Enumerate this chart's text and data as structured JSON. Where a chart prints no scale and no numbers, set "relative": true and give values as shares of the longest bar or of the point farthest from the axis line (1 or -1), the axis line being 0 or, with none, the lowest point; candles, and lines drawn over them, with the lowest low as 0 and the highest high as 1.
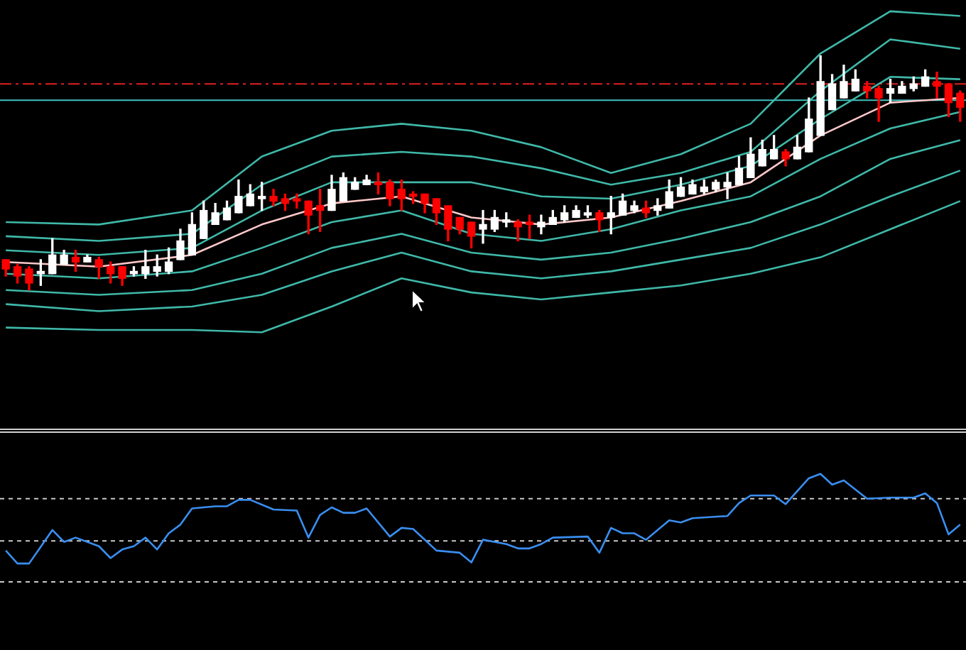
{
  "chart_data": [
    {
      "type": "candlestick",
      "relative": true,
      "marker": "none",
      "categories": [
        null,
        null,
        null,
        null,
        null,
        null,
        null,
        null,
        null,
        null,
        null,
        null,
        null,
        null,
        null,
        null,
        null,
        null,
        null,
        null,
        null,
        null,
        null,
        null,
        null,
        null,
        null,
        null,
        null,
        null,
        null,
        null,
        null,
        null,
        null,
        null,
        null,
        null,
        null,
        null,
        null,
        null,
        null,
        null,
        null,
        null,
        null,
        null,
        null,
        null,
        null,
        null,
        null,
        null,
        null,
        null,
        null,
        null,
        null,
        null,
        null,
        null,
        null,
        null,
        null,
        null,
        null,
        null,
        null,
        null,
        null,
        null,
        null,
        null,
        null,
        null,
        null,
        null,
        null,
        null,
        null,
        null,
        null
      ],
      "ohlc": [
        [
          0.13,
          0.13,
          0.06,
          0.09
        ],
        [
          0.1,
          0.11,
          0.03,
          0.06
        ],
        [
          0.09,
          0.1,
          0,
          0.03
        ],
        [
          0.07,
          0.13,
          0.02,
          0.08
        ],
        [
          0.07,
          0.22,
          0.07,
          0.15
        ],
        [
          0.11,
          0.17,
          0.11,
          0.15
        ],
        [
          0.14,
          0.17,
          0.08,
          0.12
        ],
        [
          0.12,
          0.15,
          0.12,
          0.14
        ],
        [
          0.13,
          0.14,
          0.05,
          0.1
        ],
        [
          0.1,
          0.12,
          0.03,
          0.07
        ],
        [
          0.1,
          0.1,
          0.02,
          0.05
        ],
        [
          0.07,
          0.1,
          0.06,
          0.08
        ],
        [
          0.07,
          0.17,
          0.05,
          0.1
        ],
        [
          0.08,
          0.15,
          0.06,
          0.1
        ],
        [
          0.08,
          0.18,
          0.07,
          0.12
        ],
        [
          0.13,
          0.26,
          0.13,
          0.21
        ],
        [
          0.15,
          0.33,
          0.15,
          0.28
        ],
        [
          0.22,
          0.38,
          0.22,
          0.34
        ],
        [
          0.28,
          0.37,
          0.28,
          0.33
        ],
        [
          0.3,
          0.38,
          0.3,
          0.35
        ],
        [
          0.33,
          0.47,
          0.33,
          0.4
        ],
        [
          0.36,
          0.45,
          0.36,
          0.41
        ],
        [
          0.39,
          0.46,
          0.34,
          0.4
        ],
        [
          0.4,
          0.43,
          0.36,
          0.38
        ],
        [
          0.39,
          0.41,
          0.34,
          0.37
        ],
        [
          0.39,
          0.41,
          0.35,
          0.38
        ],
        [
          0.38,
          0.38,
          0.24,
          0.32
        ],
        [
          0.36,
          0.43,
          0.25,
          0.34
        ],
        [
          0.34,
          0.49,
          0.34,
          0.43
        ],
        [
          0.38,
          0.5,
          0.38,
          0.48
        ],
        [
          0.43,
          0.48,
          0.43,
          0.46
        ],
        [
          0.45,
          0.49,
          0.45,
          0.47
        ],
        [
          0.46,
          0.5,
          0.41,
          0.45
        ],
        [
          0.46,
          0.47,
          0.36,
          0.39
        ],
        [
          0.43,
          0.47,
          0.34,
          0.39
        ],
        [
          0.41,
          0.42,
          0.37,
          0.4
        ],
        [
          0.41,
          0.41,
          0.33,
          0.37
        ],
        [
          0.39,
          0.39,
          0.28,
          0.33
        ],
        [
          0.36,
          0.36,
          0.21,
          0.26
        ],
        [
          0.31,
          0.31,
          0.24,
          0.26
        ],
        [
          0.29,
          0.29,
          0.18,
          0.23
        ],
        [
          0.26,
          0.34,
          0.2,
          0.28
        ],
        [
          0.26,
          0.34,
          0.25,
          0.31
        ],
        [
          0.29,
          0.33,
          0.27,
          0.3
        ],
        [
          0.29,
          0.3,
          0.21,
          0.27
        ],
        [
          0.29,
          0.32,
          0.22,
          0.28
        ],
        [
          0.27,
          0.32,
          0.24,
          0.29
        ],
        [
          0.28,
          0.34,
          0.28,
          0.31
        ],
        [
          0.3,
          0.36,
          0.29,
          0.33
        ],
        [
          0.31,
          0.36,
          0.31,
          0.34
        ],
        [
          0.32,
          0.36,
          0.31,
          0.33
        ],
        [
          0.33,
          0.34,
          0.25,
          0.3
        ],
        [
          0.31,
          0.4,
          0.24,
          0.33
        ],
        [
          0.32,
          0.41,
          0.32,
          0.38
        ],
        [
          0.34,
          0.38,
          0.33,
          0.36
        ],
        [
          0.35,
          0.38,
          0.31,
          0.33
        ],
        [
          0.34,
          0.39,
          0.32,
          0.36
        ],
        [
          0.35,
          0.47,
          0.35,
          0.42
        ],
        [
          0.4,
          0.48,
          0.4,
          0.44
        ],
        [
          0.41,
          0.47,
          0.41,
          0.45
        ],
        [
          0.42,
          0.47,
          0.41,
          0.44
        ],
        [
          0.43,
          0.47,
          0.42,
          0.46
        ],
        [
          0.44,
          0.5,
          0.39,
          0.46
        ],
        [
          0.45,
          0.57,
          0.45,
          0.52
        ],
        [
          0.48,
          0.65,
          0.48,
          0.58
        ],
        [
          0.53,
          0.64,
          0.53,
          0.6
        ],
        [
          0.56,
          0.66,
          0.56,
          0.6
        ],
        [
          0.59,
          0.6,
          0.53,
          0.56
        ],
        [
          0.56,
          0.66,
          0.56,
          0.61
        ],
        [
          0.59,
          0.82,
          0.59,
          0.73
        ],
        [
          0.66,
          1,
          0.66,
          0.89
        ],
        [
          0.77,
          0.92,
          0.77,
          0.88
        ],
        [
          0.82,
          0.96,
          0.82,
          0.89
        ],
        [
          0.85,
          0.94,
          0.85,
          0.9
        ],
        [
          0.87,
          0.89,
          0.82,
          0.85
        ],
        [
          0.86,
          0.87,
          0.72,
          0.82
        ],
        [
          0.84,
          0.9,
          0.8,
          0.86
        ],
        [
          0.84,
          0.89,
          0.84,
          0.87
        ],
        [
          0.86,
          0.91,
          0.85,
          0.88
        ],
        [
          0.87,
          0.94,
          0.87,
          0.91
        ],
        [
          0.89,
          0.93,
          0.82,
          0.87
        ],
        [
          0.88,
          0.88,
          0.74,
          0.8
        ],
        [
          0.84,
          0.85,
          0.72,
          0.78
        ]
      ],
      "colors": [
        "#ff0000",
        "#ff0000",
        "#ff0000",
        "#ffffff",
        "#ffffff",
        "#ffffff",
        "#ff0000",
        "#ffffff",
        "#ff0000",
        "#ff0000",
        "#ff0000",
        "#ffffff",
        "#ffffff",
        "#ffffff",
        "#ffffff",
        "#ffffff",
        "#ffffff",
        "#ffffff",
        "#ffffff",
        "#ffffff",
        "#ffffff",
        "#ffffff",
        "#ffffff",
        "#ff0000",
        "#ff0000",
        "#ff0000",
        "#ff0000",
        "#ff0000",
        "#ffffff",
        "#ffffff",
        "#ffffff",
        "#ffffff",
        "#ff0000",
        "#ff0000",
        "#ff0000",
        "#ff0000",
        "#ff0000",
        "#ff0000",
        "#ff0000",
        "#ff0000",
        "#ff0000",
        "#ffffff",
        "#ffffff",
        "#ffffff",
        "#ff0000",
        "#ff0000",
        "#ffffff",
        "#ffffff",
        "#ffffff",
        "#ffffff",
        "#ffffff",
        "#ff0000",
        "#ffffff",
        "#ffffff",
        "#ffffff",
        "#ff0000",
        "#ffffff",
        "#ffffff",
        "#ffffff",
        "#ffffff",
        "#ffffff",
        "#ffffff",
        "#ffffff",
        "#ffffff",
        "#ffffff",
        "#ffffff",
        "#ffffff",
        "#ff0000",
        "#ffffff",
        "#ffffff",
        "#ffffff",
        "#ffffff",
        "#ffffff",
        "#ffffff",
        "#ff0000",
        "#ff0000",
        "#ffffff",
        "#ffffff",
        "#ffffff",
        "#ffffff",
        "#ff0000",
        "#ff0000",
        "#ff0000"
      ],
      "series": [
        {
          "type": "line",
          "color": "#3fb8a8",
          "values": [
            0.29,
            null,
            null,
            null,
            null,
            null,
            null,
            null,
            0.28,
            null,
            null,
            null,
            null,
            null,
            null,
            null,
            0.34,
            null,
            null,
            null,
            null,
            null,
            0.57,
            null,
            null,
            null,
            null,
            null,
            0.68,
            null,
            null,
            null,
            null,
            null,
            0.71,
            null,
            null,
            null,
            null,
            null,
            0.68,
            null,
            null,
            null,
            null,
            null,
            0.61,
            null,
            null,
            null,
            null,
            null,
            0.5,
            null,
            null,
            null,
            null,
            null,
            0.58,
            null,
            null,
            null,
            null,
            null,
            0.71,
            null,
            null,
            null,
            null,
            null,
            1.01,
            null,
            null,
            null,
            null,
            null,
            1.19,
            null,
            null,
            null,
            null,
            null,
            1.17
          ]
        },
        {
          "type": "line",
          "color": "#3fb8a8",
          "values": [
            0.23,
            null,
            null,
            null,
            null,
            null,
            null,
            null,
            0.21,
            null,
            null,
            null,
            null,
            null,
            null,
            null,
            0.24,
            null,
            null,
            null,
            null,
            null,
            0.45,
            null,
            null,
            null,
            null,
            null,
            0.57,
            null,
            null,
            null,
            null,
            null,
            0.59,
            null,
            null,
            null,
            null,
            null,
            0.57,
            null,
            null,
            null,
            null,
            null,
            0.52,
            null,
            null,
            null,
            null,
            null,
            0.45,
            null,
            null,
            null,
            null,
            null,
            0.5,
            null,
            null,
            null,
            null,
            null,
            0.59,
            null,
            null,
            null,
            null,
            null,
            0.85,
            null,
            null,
            null,
            null,
            null,
            1.07,
            null,
            null,
            null,
            null,
            null,
            1.03
          ]
        },
        {
          "type": "line",
          "color": "#3fb8a8",
          "values": [
            0.17,
            null,
            null,
            null,
            null,
            null,
            null,
            null,
            0.15,
            null,
            null,
            null,
            null,
            null,
            null,
            null,
            0.18,
            null,
            null,
            null,
            null,
            null,
            0.34,
            null,
            null,
            null,
            null,
            null,
            0.46,
            null,
            null,
            null,
            null,
            null,
            0.46,
            null,
            null,
            null,
            null,
            null,
            0.46,
            null,
            null,
            null,
            null,
            null,
            0.4,
            null,
            null,
            null,
            null,
            null,
            0.39,
            null,
            null,
            null,
            null,
            null,
            0.45,
            null,
            null,
            null,
            null,
            null,
            0.53,
            null,
            null,
            null,
            null,
            null,
            0.73,
            null,
            null,
            null,
            null,
            null,
            0.91,
            null,
            null,
            null,
            null,
            null,
            0.9
          ]
        },
        {
          "type": "line",
          "color": "#ffc8c8",
          "values": [
            0.12,
            null,
            null,
            null,
            null,
            null,
            null,
            null,
            0.1,
            null,
            null,
            null,
            null,
            null,
            null,
            null,
            0.15,
            null,
            null,
            null,
            null,
            null,
            0.28,
            null,
            null,
            null,
            null,
            null,
            0.37,
            null,
            null,
            null,
            null,
            null,
            0.4,
            null,
            null,
            null,
            null,
            null,
            0.31,
            null,
            null,
            null,
            null,
            null,
            0.28,
            null,
            null,
            null,
            null,
            null,
            0.31,
            null,
            null,
            null,
            null,
            null,
            0.38,
            null,
            null,
            null,
            null,
            null,
            0.46,
            null,
            null,
            null,
            null,
            null,
            0.66,
            null,
            null,
            null,
            null,
            null,
            0.8,
            null,
            null,
            null,
            null,
            null,
            0.82
          ]
        },
        {
          "type": "line",
          "color": "#3fb8a8",
          "values": [
            0.07,
            null,
            null,
            null,
            null,
            null,
            null,
            null,
            0.05,
            null,
            null,
            null,
            null,
            null,
            null,
            null,
            0.08,
            null,
            null,
            null,
            null,
            null,
            0.18,
            null,
            null,
            null,
            null,
            null,
            0.29,
            null,
            null,
            null,
            null,
            null,
            0.34,
            null,
            null,
            null,
            null,
            null,
            0.24,
            null,
            null,
            null,
            null,
            null,
            0.21,
            null,
            null,
            null,
            null,
            null,
            0.26,
            null,
            null,
            null,
            null,
            null,
            0.34,
            null,
            null,
            null,
            null,
            null,
            0.4,
            null,
            null,
            null,
            null,
            null,
            0.56,
            null,
            null,
            null,
            null,
            null,
            0.69,
            null,
            null,
            null,
            null,
            null,
            0.76
          ]
        },
        {
          "type": "line",
          "color": "#3fb8a8",
          "values": [
            0,
            null,
            null,
            null,
            null,
            null,
            null,
            null,
            -0.02,
            null,
            null,
            null,
            null,
            null,
            null,
            null,
            0,
            null,
            null,
            null,
            null,
            null,
            0.07,
            null,
            null,
            null,
            null,
            null,
            0.18,
            null,
            null,
            null,
            null,
            null,
            0.24,
            null,
            null,
            null,
            null,
            null,
            0.16,
            null,
            null,
            null,
            null,
            null,
            0.13,
            null,
            null,
            null,
            null,
            null,
            0.16,
            null,
            null,
            null,
            null,
            null,
            0.22,
            null,
            null,
            null,
            null,
            null,
            0.29,
            null,
            null,
            null,
            null,
            null,
            0.4,
            null,
            null,
            null,
            null,
            null,
            0.56,
            null,
            null,
            null,
            null,
            null,
            0.64
          ]
        },
        {
          "type": "line",
          "color": "#3fb8a8",
          "values": [
            -0.06,
            null,
            null,
            null,
            null,
            null,
            null,
            null,
            -0.09,
            null,
            null,
            null,
            null,
            null,
            null,
            null,
            -0.07,
            null,
            null,
            null,
            null,
            null,
            -0.02,
            null,
            null,
            null,
            null,
            null,
            0.08,
            null,
            null,
            null,
            null,
            null,
            0.16,
            null,
            null,
            null,
            null,
            null,
            0.08,
            null,
            null,
            null,
            null,
            null,
            0.05,
            null,
            null,
            null,
            null,
            null,
            0.08,
            null,
            null,
            null,
            null,
            null,
            0.13,
            null,
            null,
            null,
            null,
            null,
            0.18,
            null,
            null,
            null,
            null,
            null,
            0.28,
            null,
            null,
            null,
            null,
            null,
            0.4,
            null,
            null,
            null,
            null,
            null,
            0.51
          ]
        },
        {
          "type": "line",
          "color": "#3fb8a8",
          "values": [
            -0.16,
            null,
            null,
            null,
            null,
            null,
            null,
            null,
            -0.17,
            null,
            null,
            null,
            null,
            null,
            null,
            null,
            -0.17,
            null,
            null,
            null,
            null,
            null,
            -0.18,
            null,
            null,
            null,
            null,
            null,
            -0.07,
            null,
            null,
            null,
            null,
            null,
            0.05,
            null,
            null,
            null,
            null,
            null,
            -0.01,
            null,
            null,
            null,
            null,
            null,
            -0.04,
            null,
            null,
            null,
            null,
            null,
            -0.01,
            null,
            null,
            null,
            null,
            null,
            0.02,
            null,
            null,
            null,
            null,
            null,
            0.07,
            null,
            null,
            null,
            null,
            null,
            0.14,
            null,
            null,
            null,
            null,
            null,
            0.26,
            null,
            null,
            null,
            null,
            null,
            0.38
          ]
        }
      ],
      "ref_lines": [
        {
          "axis": "y",
          "value": 0.88,
          "color": "#e02020",
          "line_style": "dashed"
        },
        {
          "axis": "y",
          "value": 0.81,
          "color": "#40c0c0",
          "line_style": "solid"
        }
      ]
    },
    {
      "type": "line",
      "relative": true,
      "marker": "none",
      "categories": [
        null,
        null,
        null,
        null,
        null,
        null,
        null,
        null,
        null,
        null,
        null,
        null,
        null,
        null,
        null,
        null,
        null,
        null,
        null,
        null,
        null,
        null,
        null,
        null,
        null,
        null,
        null,
        null,
        null,
        null,
        null,
        null,
        null,
        null,
        null,
        null,
        null,
        null,
        null,
        null,
        null,
        null,
        null,
        null,
        null,
        null,
        null,
        null,
        null,
        null,
        null,
        null,
        null,
        null,
        null,
        null,
        null,
        null,
        null,
        null,
        null,
        null,
        null,
        null,
        null,
        null,
        null,
        null,
        null,
        null,
        null,
        null,
        null,
        null,
        null,
        null,
        null,
        null,
        null,
        null,
        null,
        null,
        null
      ],
      "series": [
        {
          "color": "#3a8ef0",
          "values": [
            0.29,
            0.17,
            0.17,
            null,
            0.48,
            0.37,
            0.41,
            null,
            0.33,
            0.22,
            0.3,
            0.33,
            0.41,
            0.3,
            0.45,
            0.53,
            0.68,
            null,
            0.7,
            0.7,
            0.76,
            0.76,
            null,
            0.67,
            null,
            0.66,
            0.41,
            0.62,
            0.69,
            0.64,
            0.64,
            0.68,
            null,
            0.42,
            0.5,
            0.49,
            null,
            0.29,
            null,
            0.27,
            0.18,
            0.39,
            null,
            0.35,
            0.31,
            0.31,
            0.35,
            0.41,
            null,
            null,
            0.42,
            0.27,
            0.5,
            0.45,
            0.45,
            0.39,
            null,
            0.57,
            0.55,
            0.59,
            null,
            null,
            0.61,
            0.73,
            0.8,
            null,
            0.8,
            0.72,
            null,
            0.96,
            1,
            0.9,
            0.94,
            null,
            0.77,
            null,
            0.78,
            null,
            0.78,
            0.82,
            0.73,
            0.44,
            0.53
          ]
        }
      ],
      "ref_lines": [
        {
          "axis": "y",
          "value": 0.77,
          "color": "#c8c8c8",
          "line_style": "dotted"
        },
        {
          "axis": "y",
          "value": 0.38,
          "color": "#c8c8c8",
          "line_style": "dotted"
        },
        {
          "axis": "y",
          "value": 0,
          "color": "#c8c8c8",
          "line_style": "dotted"
        }
      ]
    }
  ]
}
